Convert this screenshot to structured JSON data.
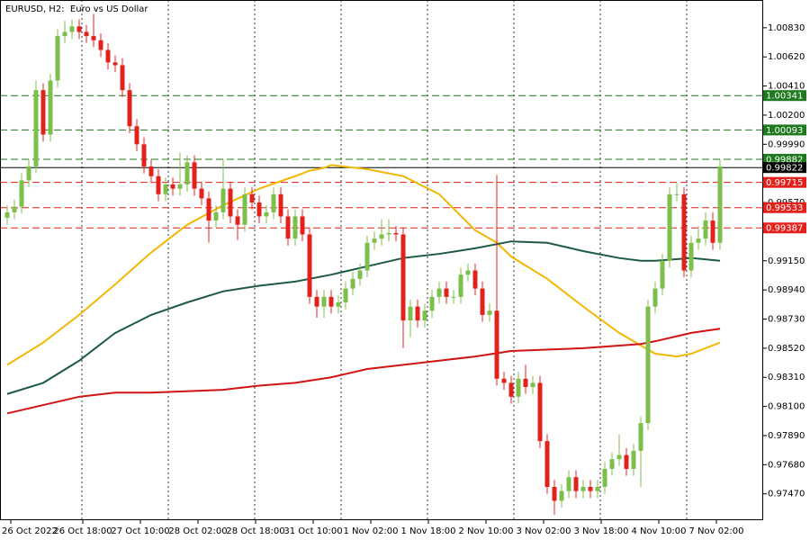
{
  "chart_data": {
    "type": "candlestick",
    "title": "EURUSD, H2:  Euro vs US Dollar",
    "categories": [
      "26 Oct 2022",
      null,
      null,
      null,
      null,
      null,
      null,
      null,
      null,
      null,
      "26 Oct 18:00",
      null,
      null,
      null,
      null,
      null,
      null,
      null,
      "27 Oct 10:00",
      null,
      null,
      null,
      null,
      null,
      null,
      null,
      "28 Oct 02:00",
      null,
      null,
      null,
      null,
      null,
      null,
      null,
      "28 Oct 18:00",
      null,
      null,
      null,
      null,
      null,
      null,
      null,
      "31 Oct 10:00",
      null,
      null,
      null,
      null,
      null,
      null,
      null,
      "1 Nov 02:00",
      null,
      null,
      null,
      null,
      null,
      null,
      null,
      "1 Nov 18:00",
      null,
      null,
      null,
      null,
      null,
      null,
      null,
      "2 Nov 10:00",
      null,
      null,
      null,
      null,
      null,
      null,
      null,
      "3 Nov 02:00",
      null,
      null,
      null,
      null,
      null,
      null,
      null,
      "3 Nov 18:00",
      null,
      null,
      null,
      null,
      null,
      null,
      null,
      "4 Nov 10:00",
      null,
      null,
      null,
      null,
      null,
      null,
      null,
      "7 Nov 02:00",
      null
    ],
    "open": [
      0.9946,
      0.995,
      0.9954,
      0.9973,
      0.9983,
      1.0038,
      1.0006,
      1.0045,
      1.0077,
      1.008,
      1.0084,
      1.008,
      1.0077,
      1.0074,
      1.0067,
      1.0058,
      1.0056,
      1.0038,
      1.0012,
      0.9999,
      0.9983,
      0.9976,
      0.9963,
      0.997,
      0.9967,
      0.997,
      0.9986,
      0.9967,
      0.996,
      0.9944,
      0.995,
      0.9967,
      0.9947,
      0.9941,
      0.9963,
      0.9957,
      0.9947,
      0.995,
      0.9963,
      0.9947,
      0.9931,
      0.9947,
      0.9934,
      0.9889,
      0.9882,
      0.9889,
      0.9882,
      0.9885,
      0.9895,
      0.9902,
      0.9908,
      0.9928,
      0.9931,
      0.9934,
      0.9935,
      0.9934,
      0.9872,
      0.9882,
      0.9872,
      0.9879,
      0.9889,
      0.9895,
      0.9889,
      0.9889,
      0.9905,
      0.9908,
      0.9895,
      0.9876,
      0.9879,
      0.983,
      0.9827,
      0.9817,
      0.983,
      0.9824,
      0.9827,
      0.9785,
      0.9752,
      0.9742,
      0.9749,
      0.9759,
      0.9749,
      0.9752,
      0.9749,
      0.9752,
      0.9765,
      0.9772,
      0.9775,
      0.9765,
      0.9778,
      0.9798,
      0.9882,
      0.9895,
      0.9915,
      0.9963,
      0.9963,
      0.9908,
      0.9928,
      0.9931,
      0.9944,
      0.9928
    ],
    "high": [
      0.9955,
      0.9959,
      0.9978,
      0.9988,
      1.0045,
      1.0043,
      1.005,
      1.0082,
      1.0088,
      1.0089,
      1.0089,
      1.0085,
      1.0093,
      1.0079,
      1.0072,
      1.0063,
      1.0061,
      1.0043,
      1.0017,
      1.0004,
      0.9988,
      0.9981,
      0.9975,
      0.9975,
      0.9993,
      0.9991,
      0.9991,
      0.9972,
      0.9965,
      0.9955,
      0.9988,
      0.9972,
      0.9952,
      0.9968,
      0.9968,
      0.9962,
      0.9955,
      0.9968,
      0.9968,
      0.9952,
      0.9952,
      0.9952,
      0.9939,
      0.9894,
      0.9894,
      0.9894,
      0.989,
      0.99,
      0.9907,
      0.9913,
      0.9933,
      0.9936,
      0.9945,
      0.9945,
      0.994,
      0.9939,
      0.9887,
      0.9887,
      0.9884,
      0.9894,
      0.99,
      0.99,
      0.9894,
      0.991,
      0.9913,
      0.9913,
      0.99,
      0.9884,
      0.9977,
      0.9835,
      0.9832,
      0.9835,
      0.984,
      0.9832,
      0.9832,
      0.979,
      0.9757,
      0.9754,
      0.9764,
      0.9764,
      0.9757,
      0.9757,
      0.9757,
      0.977,
      0.9777,
      0.979,
      0.978,
      0.9783,
      0.9803,
      0.9887,
      0.99,
      0.992,
      0.9968,
      0.9971,
      0.9968,
      0.9933,
      0.994,
      0.995,
      0.995,
      0.9988
    ],
    "low": [
      0.9941,
      0.9945,
      0.9949,
      0.9968,
      0.9978,
      1.0001,
      1.0001,
      1.004,
      1.0072,
      1.0075,
      1.0075,
      1.0072,
      1.0069,
      1.0062,
      1.0053,
      1.0051,
      1.0033,
      1.0007,
      0.9994,
      0.9978,
      0.9971,
      0.9958,
      0.9958,
      0.9962,
      0.9962,
      0.9965,
      0.9962,
      0.9955,
      0.9928,
      0.9939,
      0.9945,
      0.9942,
      0.993,
      0.9936,
      0.9952,
      0.9942,
      0.9942,
      0.9945,
      0.9942,
      0.9926,
      0.9926,
      0.9929,
      0.9884,
      0.9874,
      0.9874,
      0.9877,
      0.9877,
      0.988,
      0.989,
      0.9897,
      0.9903,
      0.9923,
      0.9926,
      0.9929,
      0.9929,
      0.9852,
      0.986,
      0.9867,
      0.9867,
      0.9874,
      0.9884,
      0.9884,
      0.9884,
      0.9884,
      0.99,
      0.989,
      0.9871,
      0.9871,
      0.9825,
      0.9822,
      0.9812,
      0.9812,
      0.9819,
      0.9819,
      0.978,
      0.9747,
      0.9732,
      0.9737,
      0.9744,
      0.9744,
      0.9744,
      0.9744,
      0.9744,
      0.9747,
      0.976,
      0.9767,
      0.976,
      0.976,
      0.9752,
      0.9793,
      0.9877,
      0.989,
      0.991,
      0.9958,
      0.9903,
      0.9903,
      0.9923,
      0.9926,
      0.9923,
      0.9923
    ],
    "close": [
      0.995,
      0.9954,
      0.9973,
      0.9983,
      1.0038,
      1.0006,
      1.0045,
      1.0077,
      1.008,
      1.0084,
      1.008,
      1.0077,
      1.0074,
      1.0067,
      1.0058,
      1.0056,
      1.0038,
      1.0012,
      0.9999,
      0.9983,
      0.9976,
      0.9963,
      0.997,
      0.9967,
      0.997,
      0.9986,
      0.9967,
      0.996,
      0.9944,
      0.995,
      0.9967,
      0.9947,
      0.9941,
      0.9963,
      0.9957,
      0.9947,
      0.995,
      0.9963,
      0.9947,
      0.9931,
      0.9947,
      0.9934,
      0.9889,
      0.9882,
      0.9889,
      0.9882,
      0.9885,
      0.9895,
      0.9902,
      0.9908,
      0.9928,
      0.9931,
      0.9934,
      0.9935,
      0.9934,
      0.9872,
      0.9882,
      0.9872,
      0.9879,
      0.9889,
      0.9895,
      0.9889,
      0.9889,
      0.9905,
      0.9908,
      0.9895,
      0.9876,
      0.9879,
      0.983,
      0.9827,
      0.9817,
      0.983,
      0.9824,
      0.9827,
      0.9785,
      0.9752,
      0.9742,
      0.9749,
      0.9759,
      0.9749,
      0.9752,
      0.9749,
      0.9752,
      0.9765,
      0.9772,
      0.9775,
      0.9765,
      0.9778,
      0.9798,
      0.9882,
      0.9895,
      0.9915,
      0.9963,
      0.9963,
      0.9908,
      0.9928,
      0.9931,
      0.9944,
      0.9928,
      0.9983
    ],
    "up_color": "#7cc04b",
    "down_color": "#e3211c",
    "ylim": [
      0.9728,
      1.0103
    ],
    "yticks": [
      {
        "value": 1.0083,
        "label": "1.00830"
      },
      {
        "value": 1.0062,
        "label": "1.00620"
      },
      {
        "value": 1.0041,
        "label": "1.00410"
      },
      {
        "value": 1.002,
        "label": "1.00200"
      },
      {
        "value": 0.9999,
        "label": "0.99990"
      },
      {
        "value": 0.9957,
        "label": "0.99570"
      },
      {
        "value": 0.9915,
        "label": "0.99150"
      },
      {
        "value": 0.9894,
        "label": "0.98940"
      },
      {
        "value": 0.9873,
        "label": "0.98730"
      },
      {
        "value": 0.9852,
        "label": "0.98520"
      },
      {
        "value": 0.9831,
        "label": "0.98310"
      },
      {
        "value": 0.981,
        "label": "0.98100"
      },
      {
        "value": 0.9789,
        "label": "0.97890"
      },
      {
        "value": 0.9768,
        "label": "0.97680"
      },
      {
        "value": 0.9747,
        "label": "0.97470"
      }
    ],
    "levels": [
      {
        "value": 1.00341,
        "color": "#1f7a1f",
        "style": "dashed"
      },
      {
        "value": 1.00093,
        "color": "#1f7a1f",
        "style": "dashed"
      },
      {
        "value": 0.99882,
        "color": "#1f7a1f",
        "style": "dashed"
      },
      {
        "value": 0.99822,
        "color": "#000000",
        "style": "solid"
      },
      {
        "value": 0.99715,
        "color": "#e3211c",
        "style": "dashed"
      },
      {
        "value": 0.99533,
        "color": "#e3211c",
        "style": "dashed"
      },
      {
        "value": 0.99387,
        "color": "#e3211c",
        "style": "dashed"
      }
    ],
    "series": [
      {
        "color": "#f2b705",
        "x": [
          0,
          5,
          10,
          15,
          20,
          25,
          30,
          35,
          40,
          42,
          44,
          45,
          50,
          55,
          60,
          65,
          68,
          70,
          75,
          80,
          85,
          90,
          93,
          95,
          99
        ],
        "values": [
          0.984,
          0.9856,
          0.9876,
          0.9898,
          0.9921,
          0.9941,
          0.9955,
          0.9967,
          0.9976,
          0.998,
          0.9982,
          0.9984,
          0.9981,
          0.9976,
          0.9963,
          0.9937,
          0.9928,
          0.9918,
          0.9902,
          0.9882,
          0.9863,
          0.9848,
          0.9846,
          0.9848,
          0.9856
        ]
      },
      {
        "color": "#1d5a45",
        "x": [
          0,
          5,
          10,
          15,
          20,
          25,
          30,
          35,
          40,
          45,
          50,
          55,
          60,
          65,
          70,
          75,
          80,
          85,
          88,
          90,
          95,
          99
        ],
        "values": [
          0.9819,
          0.9827,
          0.9843,
          0.9863,
          0.9876,
          0.9885,
          0.9893,
          0.9897,
          0.99,
          0.9905,
          0.9911,
          0.9917,
          0.992,
          0.9924,
          0.9929,
          0.9928,
          0.9922,
          0.9917,
          0.9915,
          0.9915,
          0.9917,
          0.9915
        ]
      },
      {
        "color": "#d01414",
        "x": [
          0,
          10,
          15,
          20,
          30,
          35,
          40,
          45,
          50,
          55,
          60,
          65,
          70,
          80,
          88,
          90,
          95,
          99
        ],
        "values": [
          0.9805,
          0.9817,
          0.982,
          0.982,
          0.9822,
          0.9825,
          0.9827,
          0.9831,
          0.9837,
          0.984,
          0.9843,
          0.9846,
          0.985,
          0.9852,
          0.9855,
          0.9857,
          0.9863,
          0.9866
        ]
      }
    ]
  }
}
